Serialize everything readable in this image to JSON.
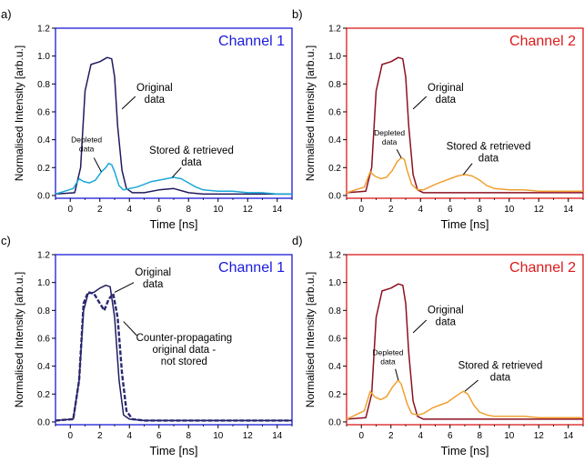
{
  "chart_data": [
    {
      "type": "line",
      "panel_label": "a)",
      "channel_title": "Channel 1",
      "frame_color": "#1a1adc",
      "title_color": "#1a1adc",
      "xlabel": "Time [ns]",
      "ylabel": "Normalised Intensity [arb.u.]",
      "xlim": [
        -1,
        15
      ],
      "ylim": [
        -0.02,
        1.2
      ],
      "xticks": [
        0,
        2,
        4,
        6,
        8,
        10,
        12,
        14
      ],
      "yticks": [
        0.0,
        0.2,
        0.4,
        0.6,
        0.8,
        1.0,
        1.2
      ],
      "series": [
        {
          "color": "#1f1b5e",
          "dashed": false,
          "x": [
            -1,
            0.3,
            0.7,
            1.0,
            1.4,
            2.0,
            2.5,
            2.8,
            3.0,
            3.2,
            3.5,
            3.8,
            4.2,
            5,
            6,
            7,
            8,
            9,
            10,
            11,
            12,
            13,
            14,
            15
          ],
          "y": [
            0.01,
            0.02,
            0.2,
            0.75,
            0.94,
            0.96,
            0.99,
            0.98,
            0.85,
            0.5,
            0.18,
            0.05,
            0.02,
            0.02,
            0.04,
            0.05,
            0.02,
            0.01,
            0.01,
            0.01,
            0.01,
            0.01,
            0.01,
            0.01
          ]
        },
        {
          "color": "#1aa8d8",
          "dashed": false,
          "x": [
            -1,
            0.2,
            0.6,
            0.9,
            1.3,
            1.7,
            2.1,
            2.4,
            2.6,
            2.8,
            3.0,
            3.3,
            3.6,
            4.0,
            4.5,
            5.0,
            5.5,
            6.0,
            6.5,
            7.0,
            7.5,
            8.0,
            8.5,
            9.0,
            10,
            11,
            12,
            13,
            14,
            15
          ],
          "y": [
            0.01,
            0.05,
            0.12,
            0.1,
            0.09,
            0.11,
            0.17,
            0.2,
            0.23,
            0.22,
            0.17,
            0.07,
            0.04,
            0.05,
            0.06,
            0.08,
            0.1,
            0.11,
            0.12,
            0.13,
            0.12,
            0.09,
            0.06,
            0.04,
            0.03,
            0.03,
            0.02,
            0.02,
            0.01,
            0.01
          ]
        }
      ],
      "annotations": [
        {
          "lines": [
            "Original",
            "data"
          ],
          "size": "large"
        },
        {
          "lines": [
            "Depleted",
            "data"
          ],
          "size": "small"
        },
        {
          "lines": [
            "Stored & retrieved",
            "data"
          ],
          "size": "large"
        }
      ]
    },
    {
      "type": "line",
      "panel_label": "b)",
      "channel_title": "Channel 2",
      "frame_color": "#dc1a1a",
      "title_color": "#dc1a1a",
      "xlabel": "Time [ns]",
      "ylabel": "Normalised Intensity [arb.u.]",
      "xlim": [
        -1,
        15
      ],
      "ylim": [
        -0.02,
        1.2
      ],
      "xticks": [
        0,
        2,
        4,
        6,
        8,
        10,
        12,
        14
      ],
      "yticks": [
        0.0,
        0.2,
        0.4,
        0.6,
        0.8,
        1.0,
        1.2
      ],
      "series": [
        {
          "color": "#8c1020",
          "dashed": false,
          "x": [
            -1,
            0.3,
            0.7,
            1.0,
            1.4,
            2.0,
            2.5,
            2.8,
            3.0,
            3.2,
            3.5,
            3.8,
            4.2,
            5,
            6,
            7,
            8,
            9,
            10,
            11,
            12,
            13,
            14,
            15
          ],
          "y": [
            0.02,
            0.03,
            0.2,
            0.75,
            0.94,
            0.96,
            0.99,
            0.98,
            0.85,
            0.5,
            0.15,
            0.04,
            0.02,
            0.02,
            0.02,
            0.02,
            0.02,
            0.02,
            0.02,
            0.02,
            0.02,
            0.02,
            0.02,
            0.02
          ]
        },
        {
          "color": "#f0a030",
          "dashed": false,
          "x": [
            -1,
            0.2,
            0.6,
            0.9,
            1.3,
            1.7,
            2.1,
            2.4,
            2.7,
            2.9,
            3.1,
            3.4,
            3.8,
            4.2,
            5.0,
            5.5,
            6.0,
            6.5,
            7.0,
            7.5,
            8.0,
            8.5,
            9.0,
            10,
            11,
            12,
            13,
            14,
            15
          ],
          "y": [
            0.02,
            0.06,
            0.17,
            0.14,
            0.12,
            0.13,
            0.18,
            0.24,
            0.27,
            0.26,
            0.18,
            0.08,
            0.04,
            0.04,
            0.08,
            0.1,
            0.12,
            0.14,
            0.15,
            0.14,
            0.11,
            0.07,
            0.05,
            0.04,
            0.04,
            0.03,
            0.03,
            0.03,
            0.03
          ]
        }
      ],
      "annotations": [
        {
          "lines": [
            "Original",
            "data"
          ],
          "size": "large"
        },
        {
          "lines": [
            "Depleted",
            "data"
          ],
          "size": "small"
        },
        {
          "lines": [
            "Stored & retrieved",
            "data"
          ],
          "size": "large"
        }
      ]
    },
    {
      "type": "line",
      "panel_label": "c)",
      "channel_title": "Channel 1",
      "frame_color": "#1a1adc",
      "title_color": "#1a1adc",
      "xlabel": "Time [ns]",
      "ylabel": "Normalised Intensity [arb.u.]",
      "xlim": [
        -1,
        15
      ],
      "ylim": [
        -0.02,
        1.2
      ],
      "xticks": [
        0,
        2,
        4,
        6,
        8,
        10,
        12,
        14
      ],
      "yticks": [
        0.0,
        0.2,
        0.4,
        0.6,
        0.8,
        1.0,
        1.2
      ],
      "series": [
        {
          "color": "#1f1b5e",
          "dashed": false,
          "x": [
            -1,
            0.2,
            0.6,
            0.9,
            1.2,
            1.6,
            2.0,
            2.4,
            2.7,
            3.0,
            3.3,
            3.6,
            4.0,
            5,
            6,
            7,
            8,
            9,
            10,
            11,
            12,
            13,
            14,
            15
          ],
          "y": [
            0.01,
            0.02,
            0.3,
            0.8,
            0.92,
            0.93,
            0.96,
            0.98,
            0.97,
            0.75,
            0.3,
            0.05,
            0.02,
            0.01,
            0.01,
            0.01,
            0.01,
            0.01,
            0.01,
            0.01,
            0.01,
            0.01,
            0.01,
            0.01
          ]
        },
        {
          "color": "#2a2870",
          "dashed": true,
          "x": [
            -1,
            0.2,
            0.6,
            0.9,
            1.2,
            1.6,
            2.0,
            2.3,
            2.6,
            2.9,
            3.2,
            3.5,
            3.8,
            4.2,
            5,
            6,
            7,
            8,
            9,
            10,
            11,
            12,
            13,
            14,
            15
          ],
          "y": [
            0.01,
            0.02,
            0.3,
            0.85,
            0.93,
            0.92,
            0.85,
            0.8,
            0.88,
            0.92,
            0.75,
            0.35,
            0.08,
            0.02,
            0.01,
            0.01,
            0.01,
            0.01,
            0.01,
            0.01,
            0.01,
            0.01,
            0.01,
            0.01,
            0.01
          ]
        }
      ],
      "annotations": [
        {
          "lines": [
            "Original",
            "data"
          ],
          "size": "large"
        },
        {
          "lines": [
            "Counter-propagating",
            "original data -",
            "not stored"
          ],
          "size": "large"
        }
      ]
    },
    {
      "type": "line",
      "panel_label": "d)",
      "channel_title": "Channel 2",
      "frame_color": "#dc1a1a",
      "title_color": "#dc1a1a",
      "xlabel": "Time [ns]",
      "ylabel": "Normalised Intensity [arb.u.]",
      "xlim": [
        -1,
        15
      ],
      "ylim": [
        -0.02,
        1.2
      ],
      "xticks": [
        0,
        2,
        4,
        6,
        8,
        10,
        12,
        14
      ],
      "yticks": [
        0.0,
        0.2,
        0.4,
        0.6,
        0.8,
        1.0,
        1.2
      ],
      "series": [
        {
          "color": "#8c1020",
          "dashed": false,
          "x": [
            -1,
            0.3,
            0.7,
            1.0,
            1.4,
            2.0,
            2.5,
            2.8,
            3.0,
            3.2,
            3.5,
            3.8,
            4.2,
            5,
            6,
            7,
            8,
            9,
            10,
            11,
            12,
            13,
            14,
            15
          ],
          "y": [
            0.02,
            0.03,
            0.2,
            0.75,
            0.94,
            0.96,
            0.99,
            0.98,
            0.85,
            0.5,
            0.15,
            0.04,
            0.02,
            0.02,
            0.02,
            0.02,
            0.02,
            0.02,
            0.02,
            0.02,
            0.02,
            0.02,
            0.02,
            0.02
          ]
        },
        {
          "color": "#f0a030",
          "dashed": false,
          "x": [
            -1,
            0.2,
            0.6,
            0.9,
            1.3,
            1.7,
            2.1,
            2.5,
            2.7,
            2.9,
            3.1,
            3.4,
            3.8,
            4.2,
            4.8,
            5.3,
            5.8,
            6.2,
            6.6,
            6.9,
            7.2,
            7.6,
            8.0,
            8.5,
            9.0,
            10,
            11,
            12,
            13,
            14,
            15
          ],
          "y": [
            0.02,
            0.08,
            0.22,
            0.18,
            0.16,
            0.18,
            0.25,
            0.3,
            0.27,
            0.2,
            0.13,
            0.06,
            0.05,
            0.06,
            0.1,
            0.12,
            0.14,
            0.17,
            0.2,
            0.22,
            0.2,
            0.12,
            0.07,
            0.05,
            0.04,
            0.04,
            0.04,
            0.03,
            0.03,
            0.03,
            0.03
          ]
        }
      ],
      "annotations": [
        {
          "lines": [
            "Original",
            "data"
          ],
          "size": "large"
        },
        {
          "lines": [
            "Depleted",
            "data"
          ],
          "size": "small"
        },
        {
          "lines": [
            "Stored & retrieved",
            "data"
          ],
          "size": "large"
        }
      ]
    }
  ]
}
